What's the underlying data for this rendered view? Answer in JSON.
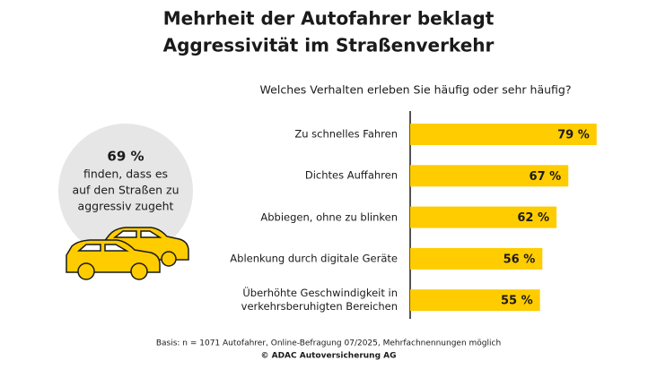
{
  "chart_data": {
    "type": "bar",
    "orientation": "horizontal",
    "title": [
      "Mehrheit der Autofahrer beklagt",
      "Aggressivität im Straßenverkehr"
    ],
    "subtitle": "Welches Verhalten erleben Sie häufig oder sehr häufig?",
    "categories": [
      "Zu schnelles Fahren",
      "Dichtes Auffahren",
      "Abbiegen, ohne zu blinken",
      "Ablenkung durch digitale Geräte",
      "Überhöhte Geschwindigkeit in\nverkehrsberuhigten Bereichen"
    ],
    "values": [
      79,
      67,
      62,
      56,
      55
    ],
    "value_labels": [
      "79 %",
      "67 %",
      "62 %",
      "56 %",
      "55 %"
    ],
    "color": "#ffcc00",
    "xlim": [
      0,
      100
    ],
    "callout": {
      "headline": "69 %",
      "lines": [
        "finden, dass es",
        "auf den Straßen zu",
        "aggressiv zugeht"
      ]
    },
    "footnote": [
      "Basis: n = 1071 Autofahrer, Online-Befragung 07/2025, Mehrfachnennungen möglich",
      "© ADAC Autoversicherung AG"
    ]
  }
}
